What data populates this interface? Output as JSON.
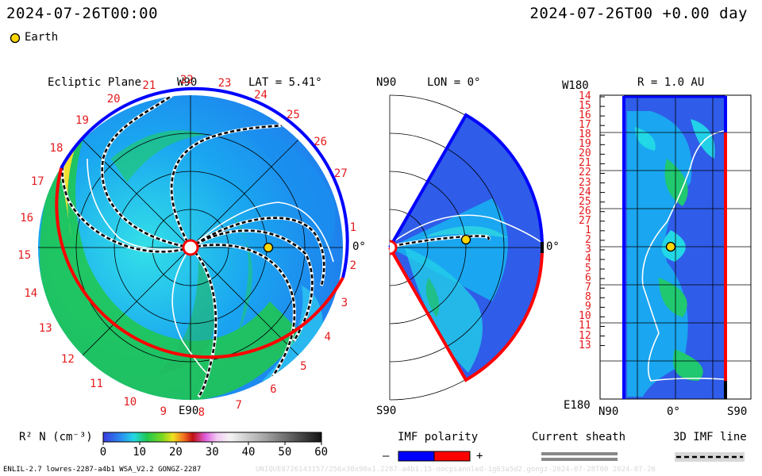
{
  "header": {
    "left_time": "2024-07-26T00:00",
    "right_time": "2024-07-26T00 +0.00 day",
    "legend_label": "Earth"
  },
  "ecliptic": {
    "title": "Ecliptic Plane",
    "top_label": "W90",
    "bottom_label": "E90",
    "lat_label": "LAT = 5.41°",
    "zero_label": "0°",
    "rotation_labels": [
      "1",
      "2",
      "3",
      "4",
      "5",
      "6",
      "7",
      "8",
      "9",
      "10",
      "11",
      "12",
      "13",
      "14",
      "15",
      "16",
      "17",
      "18",
      "19",
      "20",
      "21",
      "22",
      "23",
      "24",
      "25",
      "26",
      "27"
    ]
  },
  "meridional": {
    "top_label": "N90",
    "bottom_label": "S90",
    "lon_label": "LON = 0°",
    "zero_label": "0°"
  },
  "radial": {
    "title": "R = 1.0 AU",
    "top_label": "W180",
    "bottom_label": "E180",
    "x_labels": [
      "N90",
      "0°",
      "S90"
    ],
    "y_labels": [
      "14",
      "15",
      "16",
      "17",
      "18",
      "19",
      "20",
      "21",
      "22",
      "23",
      "24",
      "25",
      "26",
      "27",
      "1",
      "2",
      "3",
      "4",
      "5",
      "6",
      "7",
      "8",
      "9",
      "10",
      "11",
      "12",
      "13"
    ]
  },
  "colorbar": {
    "label": "R² N (cm⁻³)",
    "ticks": [
      "0",
      "10",
      "20",
      "30",
      "40",
      "50",
      "60"
    ]
  },
  "imf": {
    "title": "IMF polarity",
    "minus": "–",
    "plus": "+",
    "colors": {
      "negative": "#0000ff",
      "positive": "#ff0000"
    }
  },
  "sheath": {
    "title": "Current sheath"
  },
  "imf_line": {
    "title": "3D IMF line"
  },
  "footer": {
    "left": "ENLIL-2.7 lowres-2287-a4b1 WSA_V2.2 GONGZ-2287",
    "right": "UNIQUE0726143157/256x30x90x1.2287-a4b1.15-nocpiannled-1g63a5d2.gongz-2024-07-28T00  2024-07-26"
  }
}
